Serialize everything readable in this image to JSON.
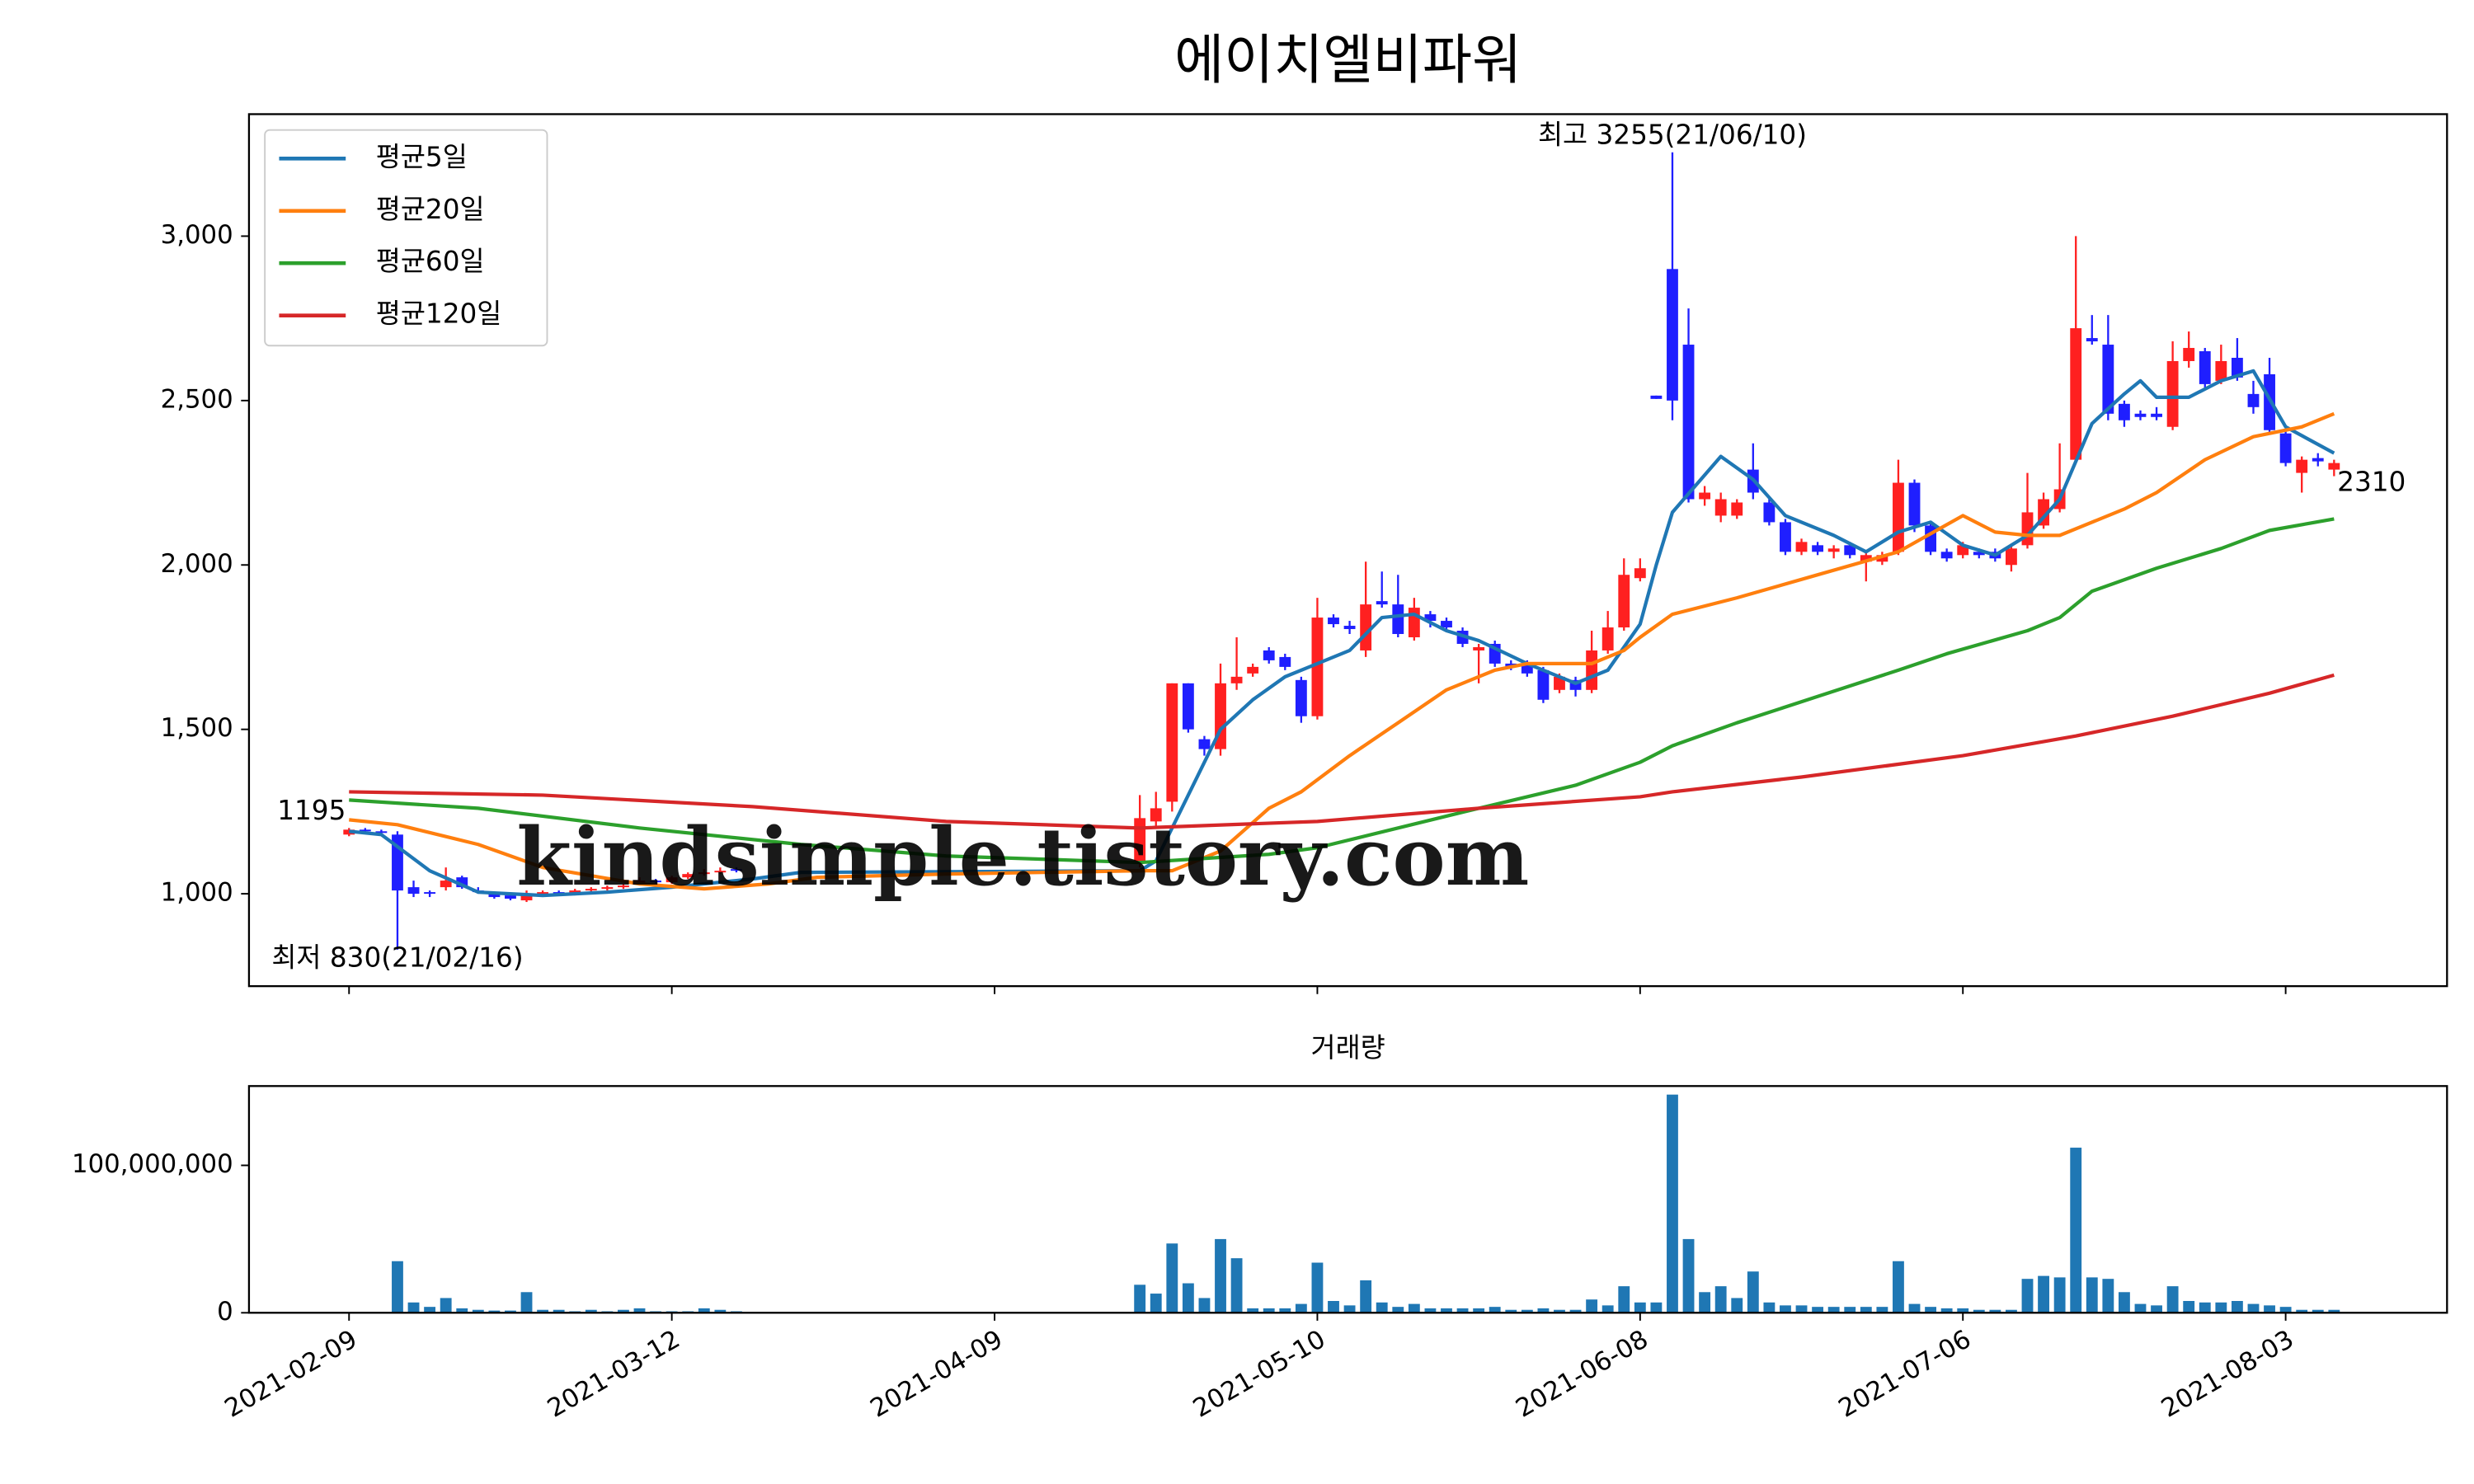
{
  "chart_data": [
    {
      "type": "candlestick",
      "title": "에이치엘비파워",
      "categories": [
        "2021-02-09",
        null,
        null,
        null,
        null,
        null,
        null,
        null,
        null,
        null,
        null,
        null,
        null,
        null,
        null,
        null,
        null,
        null,
        null,
        null,
        "2021-03-12",
        null,
        null,
        null,
        null,
        null,
        null,
        null,
        null,
        null,
        null,
        null,
        null,
        null,
        null,
        null,
        null,
        null,
        null,
        null,
        "2021-04-09",
        null,
        null,
        null,
        null,
        null,
        null,
        null,
        null,
        null,
        null,
        null,
        null,
        null,
        null,
        null,
        null,
        null,
        null,
        null,
        "2021-05-10",
        null,
        null,
        null,
        null,
        null,
        null,
        null,
        null,
        null,
        null,
        null,
        null,
        null,
        null,
        null,
        null,
        null,
        null,
        null,
        "2021-06-08",
        null,
        null,
        null,
        null,
        null,
        null,
        null,
        null,
        null,
        null,
        null,
        null,
        null,
        null,
        null,
        null,
        null,
        null,
        null,
        "2021-07-06",
        null,
        null,
        null,
        null,
        null,
        null,
        null,
        null,
        null,
        null,
        null,
        null,
        null,
        null,
        null,
        null,
        null,
        null,
        null,
        "2021-08-03",
        null,
        null,
        null
      ],
      "open": [
        1180,
        1195,
        1190,
        1180,
        1020,
        1005,
        1020,
        1050,
        1010,
        1000,
        995,
        980,
        1000,
        1005,
        1000,
        1010,
        1015,
        1020,
        1030,
        1040,
        1035,
        1050,
        1060,
        1065,
        1075,
        1070,
        1070,
        1070,
        1070,
        1070,
        1070,
        1070,
        1070,
        1070,
        1070,
        1070,
        1070,
        1070,
        1070,
        1070,
        1070,
        1070,
        1070,
        1070,
        1070,
        1070,
        1070,
        1070,
        1070,
        1100,
        1220,
        1280,
        1640,
        1470,
        1440,
        1640,
        1670,
        1740,
        1720,
        1650,
        1540,
        1840,
        1815,
        1740,
        1890,
        1880,
        1780,
        1850,
        1830,
        1800,
        1740,
        1760,
        1700,
        1700,
        1680,
        1620,
        1650,
        1620,
        1740,
        1810,
        1960,
        2515,
        2900,
        2670,
        2200,
        2150,
        2150,
        2290,
        2190,
        2130,
        2040,
        2060,
        2040,
        2060,
        2010,
        2010,
        2040,
        2250,
        2120,
        2040,
        2030,
        2040,
        2040,
        2000,
        2060,
        2120,
        2170,
        2320,
        2690,
        2670,
        2490,
        2460,
        2460,
        2420,
        2620,
        2650,
        2560,
        2630,
        2520,
        2580,
        2400,
        2280,
        2325,
        2290
      ],
      "high": [
        1200,
        1200,
        1195,
        1190,
        1040,
        1010,
        1080,
        1055,
        1020,
        1005,
        1000,
        1010,
        1010,
        1010,
        1015,
        1020,
        1025,
        1030,
        1050,
        1045,
        1055,
        1065,
        1075,
        1080,
        1080,
        1070,
        1070,
        1070,
        1070,
        1070,
        1070,
        1070,
        1070,
        1070,
        1070,
        1070,
        1070,
        1070,
        1070,
        1070,
        1070,
        1070,
        1070,
        1070,
        1070,
        1070,
        1070,
        1070,
        1070,
        1300,
        1310,
        1640,
        1640,
        1480,
        1700,
        1780,
        1700,
        1750,
        1730,
        1660,
        1900,
        1850,
        1830,
        2010,
        1980,
        1970,
        1900,
        1860,
        1840,
        1810,
        1760,
        1770,
        1710,
        1710,
        1690,
        1670,
        1660,
        1800,
        1860,
        2020,
        2020,
        2515,
        3255,
        2780,
        2240,
        2220,
        2200,
        2370,
        2200,
        2140,
        2080,
        2070,
        2060,
        2070,
        2040,
        2040,
        2320,
        2260,
        2130,
        2050,
        2070,
        2050,
        2050,
        2060,
        2280,
        2220,
        2370,
        3000,
        2760,
        2760,
        2500,
        2470,
        2480,
        2680,
        2710,
        2660,
        2670,
        2690,
        2560,
        2630,
        2410,
        2330,
        2340,
        2320
      ],
      "low": [
        1175,
        1185,
        1180,
        830,
        990,
        990,
        1010,
        1015,
        1000,
        985,
        980,
        975,
        995,
        995,
        995,
        1005,
        1010,
        1015,
        1025,
        1030,
        1030,
        1045,
        1055,
        1060,
        1065,
        1070,
        1070,
        1070,
        1070,
        1070,
        1070,
        1070,
        1070,
        1070,
        1070,
        1070,
        1070,
        1070,
        1070,
        1070,
        1070,
        1070,
        1070,
        1070,
        1070,
        1070,
        1070,
        1070,
        1070,
        1080,
        1200,
        1250,
        1490,
        1420,
        1420,
        1620,
        1660,
        1700,
        1680,
        1520,
        1530,
        1810,
        1790,
        1720,
        1870,
        1780,
        1770,
        1810,
        1800,
        1750,
        1640,
        1690,
        1680,
        1660,
        1580,
        1610,
        1600,
        1610,
        1730,
        1800,
        1950,
        2505,
        2440,
        2190,
        2180,
        2130,
        2140,
        2200,
        2120,
        2030,
        2030,
        2030,
        2020,
        2020,
        1950,
        2000,
        2030,
        2100,
        2030,
        2010,
        2020,
        2020,
        2010,
        1980,
        2050,
        2110,
        2160,
        2310,
        2670,
        2440,
        2420,
        2440,
        2440,
        2410,
        2600,
        2540,
        2550,
        2560,
        2460,
        2400,
        2300,
        2220,
        2300,
        2270
      ],
      "close": [
        1195,
        1190,
        1185,
        1010,
        1000,
        1000,
        1040,
        1020,
        1005,
        990,
        985,
        1000,
        1005,
        1000,
        1010,
        1015,
        1020,
        1025,
        1040,
        1035,
        1050,
        1060,
        1065,
        1070,
        1070,
        1070,
        1070,
        1070,
        1070,
        1070,
        1070,
        1070,
        1070,
        1070,
        1070,
        1070,
        1070,
        1070,
        1070,
        1070,
        1070,
        1070,
        1070,
        1070,
        1070,
        1070,
        1070,
        1070,
        1070,
        1230,
        1260,
        1640,
        1500,
        1440,
        1640,
        1660,
        1690,
        1710,
        1690,
        1540,
        1840,
        1820,
        1805,
        1880,
        1880,
        1790,
        1870,
        1830,
        1810,
        1760,
        1750,
        1700,
        1690,
        1670,
        1590,
        1660,
        1620,
        1740,
        1810,
        1970,
        1990,
        2505,
        2500,
        2200,
        2220,
        2200,
        2190,
        2220,
        2130,
        2040,
        2070,
        2040,
        2050,
        2030,
        2030,
        2030,
        2250,
        2120,
        2040,
        2020,
        2060,
        2030,
        2020,
        2050,
        2160,
        2200,
        2230,
        2720,
        2680,
        2460,
        2440,
        2450,
        2450,
        2620,
        2660,
        2550,
        2620,
        2570,
        2480,
        2410,
        2310,
        2320,
        2315,
        2310
      ],
      "up_color": "#ff2020",
      "down_color": "#1f1fff",
      "series": [
        {
          "name": "평균5일",
          "color": "#1f77b4",
          "x": [
            0,
            2,
            5,
            8,
            12,
            16,
            20,
            25,
            28,
            49,
            50,
            52,
            54,
            56,
            58,
            60,
            62,
            64,
            66,
            68,
            70,
            73,
            76,
            78,
            80,
            81,
            82,
            85,
            87,
            89,
            92,
            94,
            96,
            98,
            100,
            102,
            104,
            106,
            108,
            110,
            111,
            112,
            114,
            116,
            118,
            120,
            123
          ],
          "values": [
            1190,
            1180,
            1070,
            1005,
            995,
            1005,
            1020,
            1045,
            1065,
            1070,
            1100,
            1300,
            1500,
            1590,
            1660,
            1700,
            1740,
            1840,
            1850,
            1800,
            1770,
            1700,
            1640,
            1680,
            1820,
            2000,
            2160,
            2330,
            2260,
            2150,
            2090,
            2040,
            2100,
            2130,
            2060,
            2030,
            2090,
            2200,
            2430,
            2520,
            2560,
            2510,
            2510,
            2560,
            2590,
            2420,
            2340
          ]
        },
        {
          "name": "평균20일",
          "color": "#ff7f0e",
          "x": [
            0,
            3,
            8,
            12,
            18,
            22,
            26,
            29,
            37,
            49,
            51,
            54,
            57,
            59,
            62,
            65,
            68,
            71,
            73,
            75,
            77,
            79,
            80,
            82,
            86,
            91,
            96,
            100,
            102,
            104,
            106,
            110,
            112,
            115,
            118,
            121,
            123
          ],
          "values": [
            1225,
            1210,
            1150,
            1080,
            1030,
            1015,
            1030,
            1050,
            1060,
            1070,
            1070,
            1130,
            1260,
            1310,
            1420,
            1520,
            1620,
            1680,
            1700,
            1700,
            1700,
            1740,
            1780,
            1850,
            1900,
            1970,
            2040,
            2150,
            2100,
            2090,
            2090,
            2170,
            2220,
            2320,
            2390,
            2420,
            2460
          ]
        },
        {
          "name": "평균60일",
          "color": "#2ca02c",
          "x": [
            0,
            8,
            18,
            28,
            37,
            49,
            57,
            60,
            65,
            70,
            76,
            80,
            82,
            86,
            91,
            96,
            99,
            104,
            106,
            108,
            112,
            116,
            119,
            123
          ],
          "values": [
            1285,
            1260,
            1200,
            1150,
            1115,
            1095,
            1120,
            1140,
            1200,
            1260,
            1330,
            1400,
            1450,
            1520,
            1600,
            1680,
            1730,
            1800,
            1840,
            1920,
            1990,
            2050,
            2105,
            2140
          ]
        },
        {
          "name": "평균120일",
          "color": "#d62728",
          "x": [
            0,
            12,
            25,
            37,
            49,
            60,
            70,
            80,
            82,
            90,
            100,
            107,
            113,
            119,
            123
          ],
          "values": [
            1310,
            1300,
            1265,
            1220,
            1200,
            1220,
            1260,
            1295,
            1310,
            1355,
            1420,
            1480,
            1540,
            1610,
            1665
          ]
        }
      ],
      "legend": "upper left",
      "annotations": [
        {
          "text": "최고 3255(21/06/10)",
          "x": 82,
          "y": 3255,
          "color": "#ff0000"
        },
        {
          "text": "최저 830(21/02/16)",
          "x": 3,
          "y": 830,
          "color": "#0000ff"
        },
        {
          "text": "1195",
          "x": 0,
          "y": 1195,
          "color": "#000000"
        },
        {
          "text": "2310",
          "x": 123,
          "y": 2310,
          "color": "#000000"
        }
      ],
      "watermark": {
        "text": "kindsimple.tistory.com",
        "color": "#dda0ee"
      },
      "xlim": [
        -6.2,
        130
      ],
      "ylim": [
        719,
        3371
      ],
      "yticks": [
        {
          "value": 1000,
          "label": "1,000"
        },
        {
          "value": 1500,
          "label": "1,500"
        },
        {
          "value": 2000,
          "label": "2,000"
        },
        {
          "value": 2500,
          "label": "2,500"
        },
        {
          "value": 3000,
          "label": "3,000"
        }
      ]
    },
    {
      "type": "bar",
      "title": "거래량",
      "color": "#1f77b4",
      "values": [
        300000,
        400000,
        400000,
        35000000,
        7000000,
        4000000,
        10000000,
        3000000,
        2000000,
        1500000,
        1500000,
        14000000,
        2000000,
        2000000,
        1000000,
        2000000,
        1000000,
        2000000,
        3000000,
        1000000,
        1000000,
        1000000,
        3000000,
        2000000,
        1000000,
        0,
        0,
        0,
        0,
        0,
        0,
        0,
        0,
        0,
        0,
        0,
        0,
        0,
        0,
        0,
        0,
        0,
        0,
        0,
        0,
        0,
        0,
        0,
        0,
        19000000,
        13000000,
        47000000,
        20000000,
        10000000,
        50000000,
        37000000,
        3000000,
        3000000,
        3000000,
        6000000,
        34000000,
        8000000,
        5000000,
        22000000,
        7000000,
        4000000,
        6000000,
        3000000,
        3000000,
        3000000,
        3000000,
        4000000,
        2000000,
        2000000,
        3000000,
        2000000,
        2000000,
        9000000,
        5000000,
        18000000,
        7000000,
        7000000,
        148000000,
        50000000,
        14000000,
        18000000,
        10000000,
        28000000,
        7000000,
        5000000,
        5000000,
        4000000,
        4000000,
        4000000,
        4000000,
        4000000,
        35000000,
        6000000,
        4000000,
        3000000,
        3000000,
        2000000,
        2000000,
        2000000,
        23000000,
        25000000,
        24000000,
        112000000,
        24000000,
        23000000,
        14000000,
        6000000,
        5000000,
        18000000,
        8000000,
        7000000,
        7000000,
        8000000,
        6000000,
        5000000,
        4000000,
        2000000,
        2000000,
        2000000
      ],
      "ylim": [
        0,
        153800000
      ],
      "yticks": [
        0,
        {
          "value": 100000000,
          "label": "100,000,000"
        }
      ]
    }
  ]
}
